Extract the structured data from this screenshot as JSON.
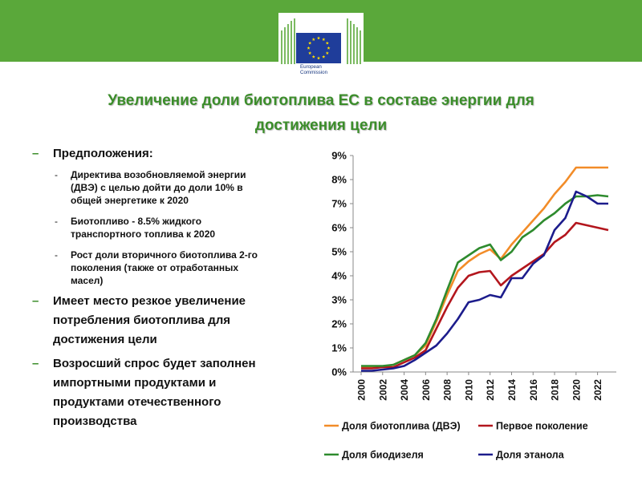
{
  "header": {
    "logo_line1": "European",
    "logo_line2": "Commission",
    "colors": {
      "band": "#5aa83a",
      "flag": "#1f3d9a",
      "flag_stars": "#ffde00"
    }
  },
  "title_line1": "Увеличение доли биотоплива ЕС в составе энергии для",
  "title_line2": "достижения цели",
  "bullets": [
    {
      "level": 1,
      "text": "Предположения:"
    },
    {
      "level": 2,
      "lines": [
        "Директива возобновляемой энергии",
        "(ДВЭ) с целью дойти до доли 10% в",
        "общей энергетике к 2020"
      ]
    },
    {
      "level": 2,
      "lines": [
        "Биотопливо - 8.5% жидкого",
        "транспортного топлива к 2020"
      ]
    },
    {
      "level": 2,
      "lines": [
        "Рост доли вторичного биотоплива 2-го",
        "поколения (также от отработанных",
        "масел)"
      ]
    },
    {
      "level": 1,
      "lines": [
        "Имеет место резкое увеличение",
        "потребления биотоплива для",
        "достижения цели"
      ]
    },
    {
      "level": 1,
      "lines": [
        "Возросший спрос будет заполнен",
        "импортными продуктами и",
        "продуктами отечественного",
        "производства"
      ]
    }
  ],
  "chart_data": {
    "type": "line",
    "x": [
      2000,
      2001,
      2002,
      2003,
      2004,
      2005,
      2006,
      2007,
      2008,
      2009,
      2010,
      2011,
      2012,
      2013,
      2014,
      2015,
      2016,
      2017,
      2018,
      2019,
      2020,
      2021,
      2022,
      2023
    ],
    "xticks": [
      "2000",
      "2002",
      "2004",
      "2006",
      "2008",
      "2010",
      "2012",
      "2014",
      "2016",
      "2018",
      "2020",
      "2022"
    ],
    "yticks": [
      "0%",
      "1%",
      "2%",
      "3%",
      "4%",
      "5%",
      "6%",
      "7%",
      "8%",
      "9%"
    ],
    "ylim": [
      0,
      9
    ],
    "grid": false,
    "legend_position": "bottom",
    "series": [
      {
        "name": "Доля биотоплива (ДВЭ)",
        "color": "#f28c28",
        "values": [
          0.2,
          0.2,
          0.2,
          0.3,
          0.5,
          0.7,
          1.1,
          2.1,
          3.2,
          4.2,
          4.6,
          4.9,
          5.1,
          4.7,
          5.3,
          5.8,
          6.3,
          6.8,
          7.4,
          7.9,
          8.5,
          8.5,
          8.5,
          8.5
        ]
      },
      {
        "name": "Первое поколение",
        "color": "#b3161d",
        "values": [
          0.15,
          0.15,
          0.2,
          0.2,
          0.4,
          0.6,
          0.9,
          1.8,
          2.7,
          3.5,
          4.0,
          4.15,
          4.2,
          3.6,
          4.0,
          4.3,
          4.6,
          4.9,
          5.4,
          5.7,
          6.2,
          6.1,
          6.0,
          5.9
        ]
      },
      {
        "name": "Доля биодизеля",
        "color": "#2e8b2e",
        "values": [
          0.25,
          0.25,
          0.25,
          0.3,
          0.5,
          0.7,
          1.2,
          2.2,
          3.4,
          4.55,
          4.85,
          5.15,
          5.3,
          4.65,
          5.0,
          5.6,
          5.9,
          6.3,
          6.6,
          7.0,
          7.3,
          7.3,
          7.35,
          7.3
        ]
      },
      {
        "name": "Доля этанола",
        "color": "#1c1c8c",
        "values": [
          0.05,
          0.05,
          0.1,
          0.15,
          0.25,
          0.5,
          0.8,
          1.1,
          1.6,
          2.2,
          2.9,
          3.0,
          3.2,
          3.1,
          3.9,
          3.9,
          4.5,
          4.85,
          5.9,
          6.4,
          7.5,
          7.3,
          7.0,
          7.0
        ]
      }
    ]
  }
}
